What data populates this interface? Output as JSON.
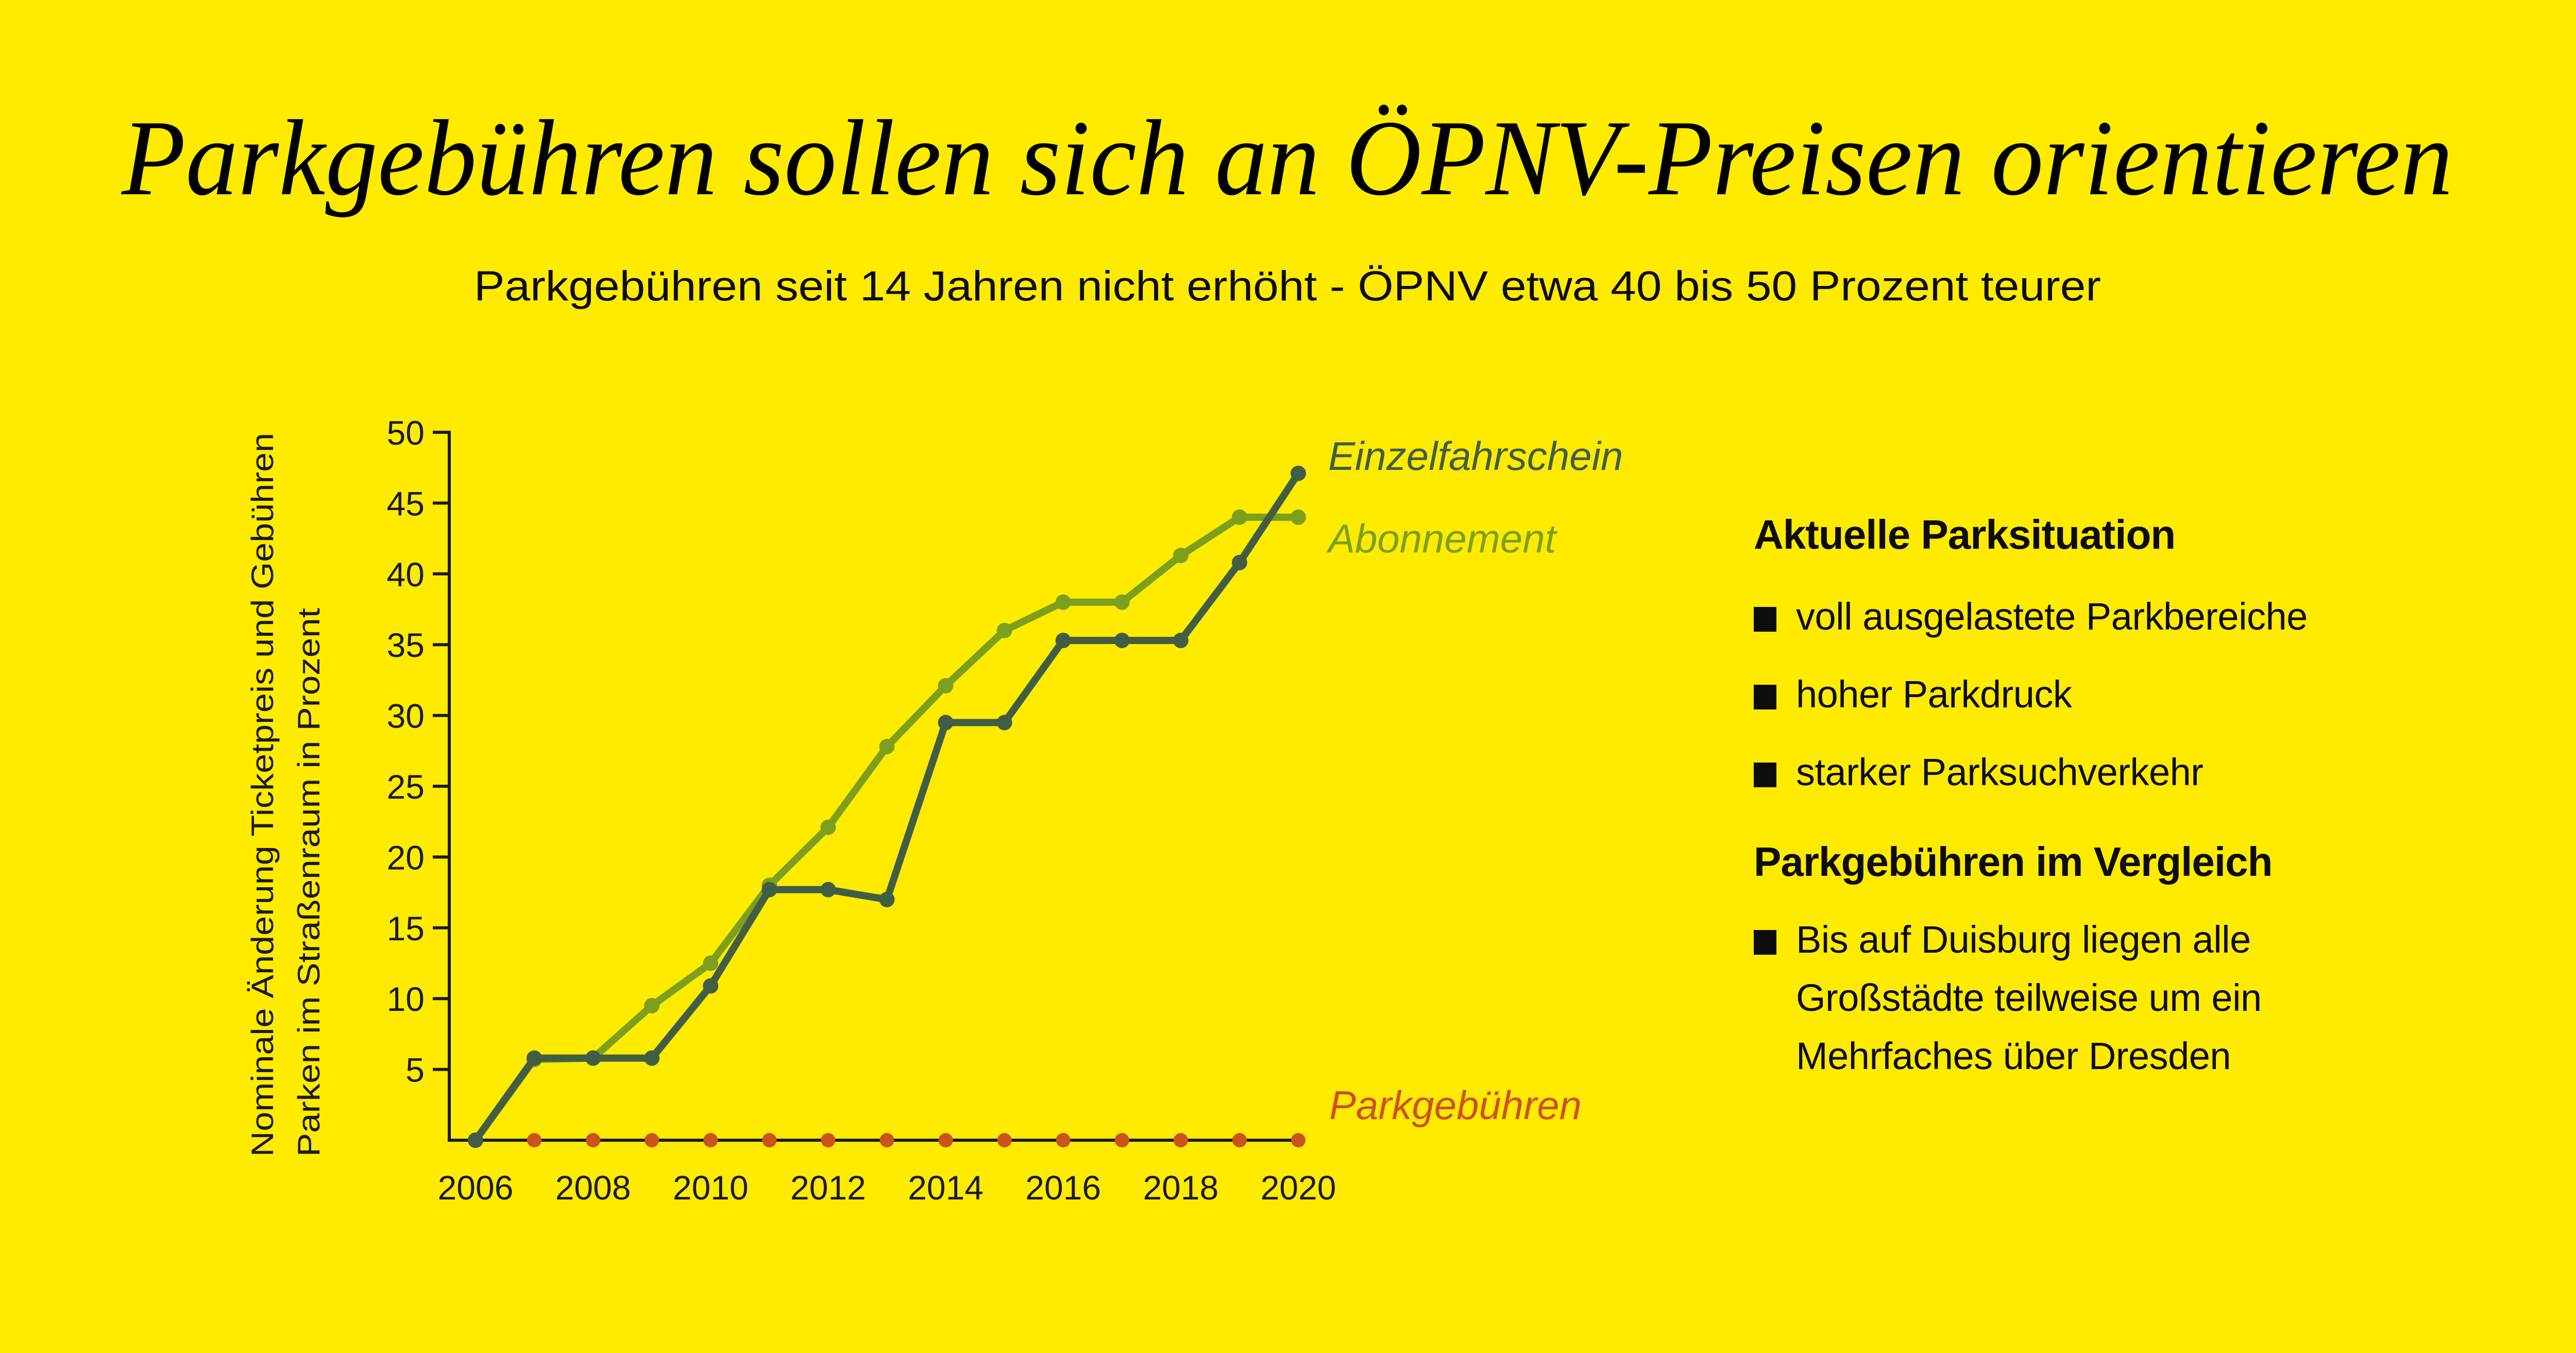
{
  "title": "Parkgebühren sollen sich an ÖPNV-Preisen orientieren",
  "subtitle": "Parkgebühren seit 14 Jahren nicht erhöht - ÖPNV etwa 40 bis 50 Prozent teurer",
  "colors": {
    "background": "#FFEB00",
    "einzelfahrschein": "#415E44",
    "abonnement": "#7C9F1E",
    "parkgebuehren": "#CC5220",
    "axis": "#1a1a1a",
    "text": "#0d0d0d"
  },
  "chart_data": {
    "type": "line",
    "title": "",
    "ylabel_lines": [
      "Nominale Änderung Ticketpreis und Gebühren",
      "Parken im Straßenraum in Prozent"
    ],
    "xlabel": "",
    "x": [
      2006,
      2007,
      2008,
      2009,
      2010,
      2011,
      2012,
      2013,
      2014,
      2015,
      2016,
      2017,
      2018,
      2019,
      2020
    ],
    "x_tick_labels": [
      "2006",
      "2008",
      "2010",
      "2012",
      "2014",
      "2016",
      "2018",
      "2020"
    ],
    "y_tick_labels": [
      "5",
      "10",
      "15",
      "20",
      "25",
      "30",
      "35",
      "40",
      "45",
      "50"
    ],
    "xlim": [
      2006,
      2020
    ],
    "ylim": [
      0,
      50
    ],
    "grid": false,
    "legend": "inline-right",
    "series": [
      {
        "name": "Einzelfahrschein",
        "color": "#415E44",
        "values": [
          0,
          5.8,
          5.8,
          5.8,
          10.9,
          17.7,
          17.7,
          17.0,
          29.5,
          29.5,
          35.3,
          35.3,
          35.3,
          40.8,
          47.1
        ]
      },
      {
        "name": "Abonnement",
        "color": "#7C9F1E",
        "values": [
          0,
          5.7,
          5.8,
          9.5,
          12.5,
          18.0,
          22.1,
          27.8,
          32.1,
          36.0,
          38.0,
          38.0,
          41.3,
          44.0,
          44.0
        ]
      },
      {
        "name": "Parkgebühren",
        "color": "#CC5220",
        "values": [
          0,
          0,
          0,
          0,
          0,
          0,
          0,
          0,
          0,
          0,
          0,
          0,
          0,
          0,
          0
        ]
      }
    ]
  },
  "sidebar": {
    "sections": [
      {
        "heading": "Aktuelle Parksituation",
        "items": [
          "voll ausgelastete Parkbereiche",
          "hoher Parkdruck",
          "starker Parksuchverkehr"
        ]
      },
      {
        "heading": "Parkgebühren im Vergleich",
        "items": [
          "Bis auf Duisburg liegen alle Großstädte teilweise um ein Mehrfaches über Dresden"
        ]
      }
    ]
  }
}
